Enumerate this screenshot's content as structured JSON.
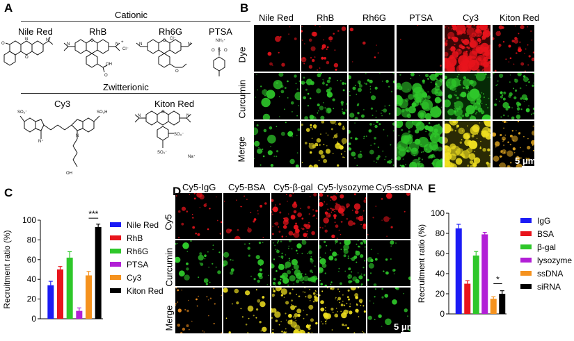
{
  "panels": {
    "A": "A",
    "B": "B",
    "C": "C",
    "D": "D",
    "E": "E"
  },
  "panel_a": {
    "cationic_label": "Cationic",
    "zwitterionic_label": "Zwitterionic",
    "molecules": [
      "Nile Red",
      "RhB",
      "Rh6G",
      "PTSA",
      "Cy3",
      "Kiton Red"
    ]
  },
  "panel_b": {
    "columns": [
      "Nile Red",
      "RhB",
      "Rh6G",
      "PTSA",
      "Cy3",
      "Kiton Red"
    ],
    "rows": [
      "Dye",
      "Curcumin",
      "Merge"
    ],
    "scale_bar": "5 μm"
  },
  "panel_d": {
    "columns": [
      "Cy5-IgG",
      "Cy5-BSA",
      "Cy5-β-gal",
      "Cy5-lysozyme",
      "Cy5-ssDNA"
    ],
    "rows": [
      "Cy5",
      "Curcumin",
      "Merge"
    ],
    "scale_bar": "5 μm"
  },
  "colors": {
    "red": "#e8141c",
    "green": "#2ec72a",
    "yellow": "#f0e020",
    "blue": "#1b1bf5",
    "purple": "#b21fd6",
    "orange": "#f5921e",
    "black": "#000000"
  },
  "chart_data": [
    {
      "type": "bar",
      "panel": "C",
      "categories": [
        "Nile Red",
        "RhB",
        "Rh6G",
        "PTSA",
        "Cy3",
        "Kiton Red"
      ],
      "values": [
        34,
        50,
        62,
        8,
        44,
        93
      ],
      "errors": [
        4,
        3,
        6,
        3,
        4,
        3
      ],
      "colors": [
        "#1b1bf5",
        "#e8141c",
        "#2ec72a",
        "#b21fd6",
        "#f5921e",
        "#000000"
      ],
      "ylabel": "Recruitment ratio (%)",
      "ylim": [
        0,
        100
      ],
      "yticks": [
        0,
        20,
        40,
        60,
        80,
        100
      ],
      "legend": [
        "Nile Red",
        "RhB",
        "Rh6G",
        "PTSA",
        "Cy3",
        "Kiton Red"
      ],
      "legend_position": "right",
      "significance": {
        "from": "Cy3",
        "to": "Kiton Red",
        "label": "***"
      }
    },
    {
      "type": "bar",
      "panel": "E",
      "categories": [
        "IgG",
        "BSA",
        "β-gal",
        "lysozyme",
        "ssDNA",
        "siRNA"
      ],
      "values": [
        85,
        30,
        58,
        79,
        15,
        20
      ],
      "errors": [
        4,
        3,
        4,
        2,
        2,
        3
      ],
      "colors": [
        "#1b1bf5",
        "#e8141c",
        "#2ec72a",
        "#b21fd6",
        "#f5921e",
        "#000000"
      ],
      "ylabel": "Recruitment ratio (%)",
      "ylim": [
        0,
        100
      ],
      "yticks": [
        0,
        20,
        40,
        60,
        80,
        100
      ],
      "legend": [
        "IgG",
        "BSA",
        "β-gal",
        "lysozyme",
        "ssDNA",
        "siRNA"
      ],
      "legend_position": "right",
      "significance": {
        "from": "ssDNA",
        "to": "siRNA",
        "label": "*"
      }
    }
  ]
}
